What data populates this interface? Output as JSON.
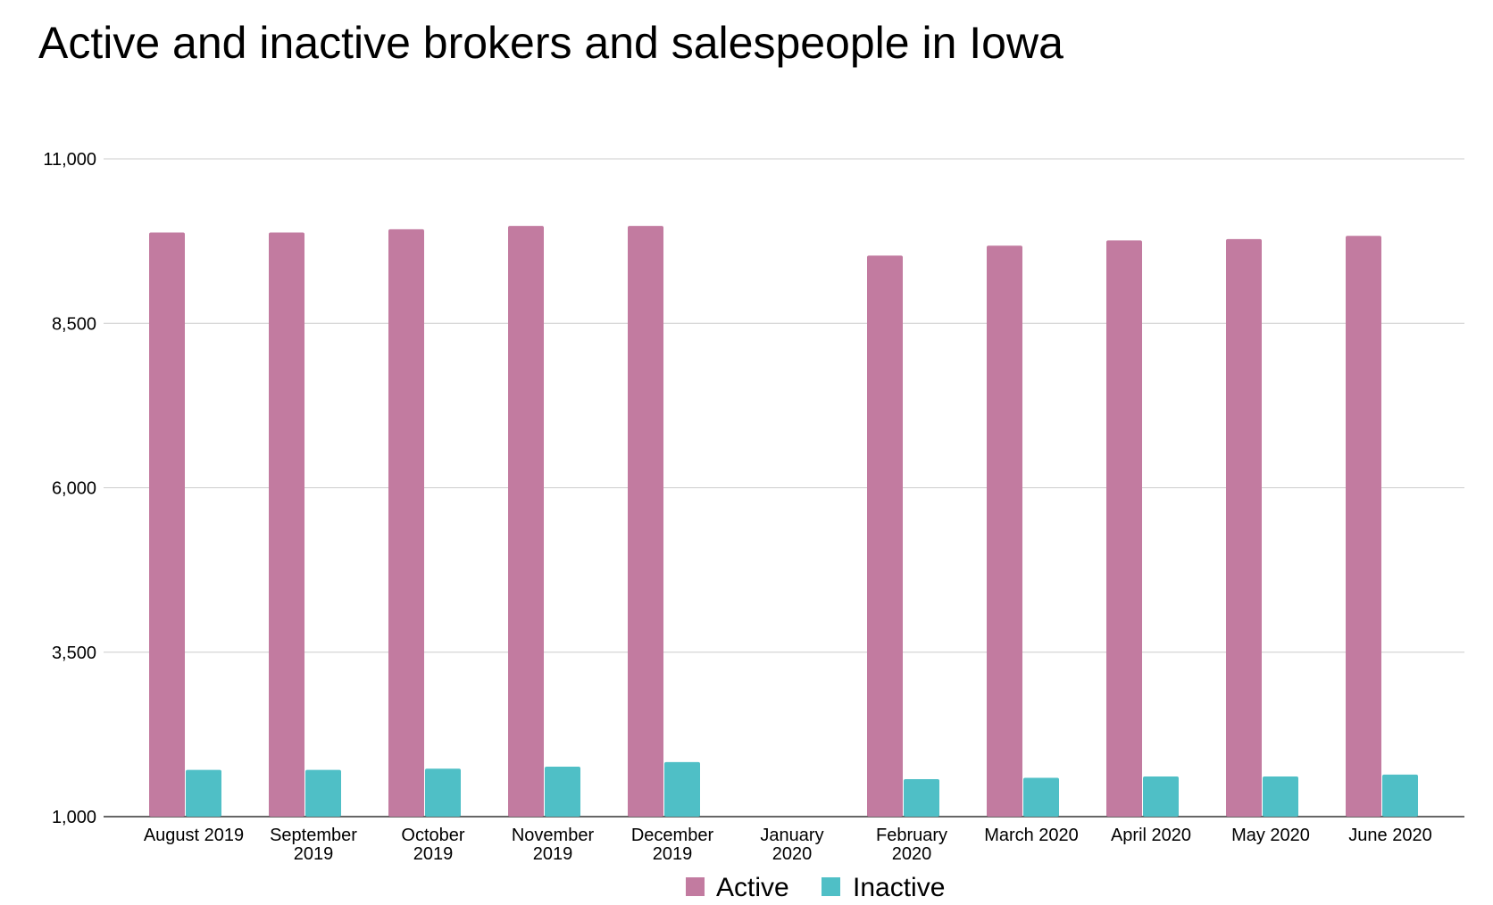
{
  "chart_data": {
    "type": "bar",
    "title": "Active and inactive brokers and salespeople in Iowa",
    "xlabel": "",
    "ylabel": "",
    "categories": [
      "August 2019",
      "September 2019",
      "October 2019",
      "November 2019",
      "December 2019",
      "January 2020",
      "February 2020",
      "March 2020",
      "April 2020",
      "May 2020",
      "June 2020"
    ],
    "category_label_lines": [
      [
        "August 2019"
      ],
      [
        "September",
        "2019"
      ],
      [
        "October",
        "2019"
      ],
      [
        "November",
        "2019"
      ],
      [
        "December",
        "2019"
      ],
      [
        "January",
        "2020"
      ],
      [
        "February",
        "2020"
      ],
      [
        "March 2020"
      ],
      [
        "April 2020"
      ],
      [
        "May 2020"
      ],
      [
        "June 2020"
      ]
    ],
    "series": [
      {
        "name": "Active",
        "color": "#c27ba0",
        "values": [
          9880,
          9880,
          9930,
          9980,
          9980,
          null,
          9530,
          9680,
          9760,
          9780,
          9830
        ]
      },
      {
        "name": "Inactive",
        "color": "#4fbfc6",
        "values": [
          1710,
          1710,
          1730,
          1760,
          1830,
          null,
          1570,
          1590,
          1610,
          1610,
          1640
        ]
      }
    ],
    "ylim": [
      1000,
      11000
    ],
    "yticks": [
      1000,
      3500,
      6000,
      8500,
      11000
    ],
    "ytick_labels": [
      "1,000",
      "3,500",
      "6,000",
      "8,500",
      "11,000"
    ],
    "grid": true,
    "legend_position": "bottom"
  }
}
